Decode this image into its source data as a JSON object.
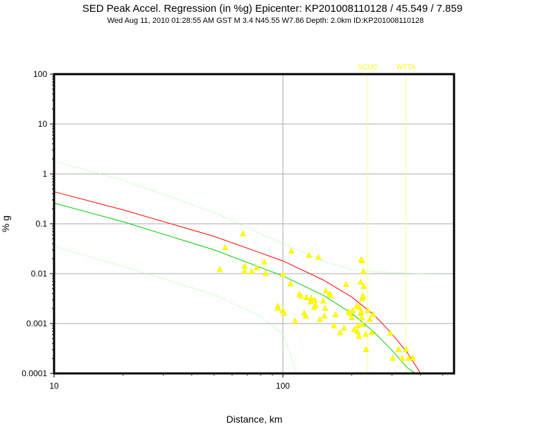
{
  "header": {
    "title": "SED Peak Accel. Regression (in %g) Epicenter: KP201008110128 / 45.549 / 7.859",
    "subtitle": "Wed Aug 11, 2010 01:28:55 AM GST   M 3.4    N45.55 W7.86   Depth: 2.0km   ID:KP201008110128"
  },
  "chart_data": {
    "type": "scatter",
    "title": "SED Peak Accel. Regression (in %g) Epicenter: KP201008110128 / 45.549 / 7.859",
    "subtitle": "Wed Aug 11, 2010 01:28:55 AM GST   M 3.4    N45.55 W7.86   Depth: 2.0km   ID:KP201008110128",
    "xlabel": "Distance, km",
    "ylabel": "% g",
    "xscale": "log",
    "yscale": "log",
    "xlim": [
      10,
      560
    ],
    "ylim": [
      0.0001,
      100
    ],
    "xticks": [
      10,
      100
    ],
    "xtick_labels": [
      "10",
      "100"
    ],
    "yticks": [
      0.0001,
      0.001,
      0.01,
      0.1,
      1,
      10,
      100
    ],
    "ytick_labels": [
      "0.0001",
      "0.001",
      "0.01",
      "0.1",
      "1",
      "10",
      "100"
    ],
    "grid": true,
    "colors": {
      "points": "#ffff00",
      "regression": "#ff0000",
      "fit": "#00cc00",
      "fit_bounds": "#aaffaa",
      "stations": "#ffff66"
    },
    "stations": [
      {
        "name": "SCUC",
        "distance": 235
      },
      {
        "name": "WTTA",
        "distance": 345
      }
    ],
    "series": [
      {
        "kind": "points",
        "x": [
          53,
          56,
          67,
          68,
          68,
          73,
          77,
          83,
          84,
          95,
          95,
          100,
          100,
          101,
          109,
          108,
          113,
          118,
          120,
          124,
          126,
          127,
          130,
          132,
          133,
          137,
          138,
          139,
          143,
          145,
          150,
          152,
          153,
          154,
          160,
          162,
          167,
          170,
          178,
          185,
          189,
          194,
          197,
          200,
          202,
          205,
          210,
          212,
          213,
          215,
          216,
          218,
          219,
          220,
          220,
          221,
          222,
          222,
          223,
          223,
          224,
          225,
          226,
          230,
          231,
          235,
          240,
          245,
          248,
          295,
          302,
          320,
          332,
          345,
          355,
          370
        ],
        "y": [
          0.012,
          0.033,
          0.062,
          0.014,
          0.011,
          0.011,
          0.013,
          0.017,
          0.01,
          0.0022,
          0.002,
          0.0095,
          0.0018,
          0.0016,
          0.028,
          0.0062,
          0.0011,
          0.0038,
          0.0035,
          0.0016,
          0.0014,
          0.0033,
          0.023,
          0.0027,
          0.0032,
          0.0021,
          0.0029,
          0.0023,
          0.021,
          0.0012,
          0.0028,
          0.0014,
          0.002,
          0.0045,
          0.0039,
          0.0036,
          0.0009,
          0.0015,
          0.00065,
          0.0008,
          0.006,
          0.0017,
          0.0016,
          0.0013,
          0.0018,
          0.00075,
          0.0022,
          0.00068,
          0.0009,
          0.00055,
          0.0021,
          0.0016,
          0.0067,
          0.019,
          0.0017,
          0.0013,
          0.018,
          0.0031,
          0.0034,
          0.00095,
          0.0036,
          0.011,
          0.0055,
          0.0006,
          0.0003,
          0.0018,
          0.0012,
          0.00065,
          0.0015,
          0.00063,
          0.0002,
          0.0003,
          0.0002,
          0.0003,
          0.0002,
          0.0002
        ]
      },
      {
        "kind": "regression",
        "x": [
          10,
          20,
          50,
          100,
          150,
          200,
          250,
          300,
          350,
          400
        ],
        "y": [
          0.44,
          0.19,
          0.056,
          0.018,
          0.0075,
          0.0034,
          0.0015,
          0.00062,
          0.00026,
          0.0001
        ]
      },
      {
        "kind": "fit",
        "x": [
          10,
          20,
          50,
          100,
          150,
          200,
          250,
          300,
          350,
          380
        ],
        "y": [
          0.26,
          0.11,
          0.03,
          0.009,
          0.0037,
          0.0016,
          0.00068,
          0.00029,
          0.00013,
          0.0001
        ]
      },
      {
        "kind": "fit_upper",
        "x": [
          10,
          20,
          50,
          100,
          150,
          200,
          250,
          300,
          400,
          500
        ],
        "y": [
          1.8,
          0.75,
          0.17,
          0.04,
          0.018,
          0.012,
          0.011,
          0.0105,
          0.01,
          0.0098
        ]
      },
      {
        "kind": "fit_lower",
        "x": [
          10,
          20,
          50,
          80,
          100,
          105,
          110,
          115
        ],
        "y": [
          0.035,
          0.014,
          0.0038,
          0.0014,
          0.0006,
          0.00035,
          0.00018,
          0.0001
        ]
      }
    ]
  }
}
